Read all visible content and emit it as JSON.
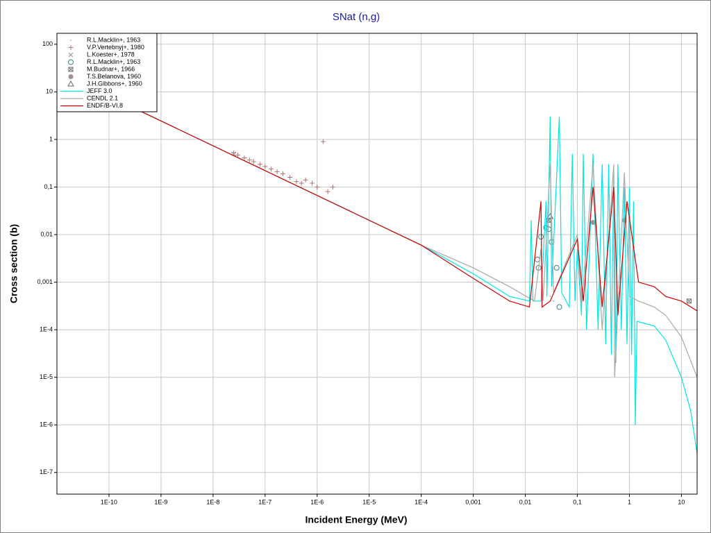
{
  "chart_data": {
    "type": "line",
    "title": "SNat (n,g)",
    "x_label": "Incident Energy (MeV)",
    "y_label": "Cross section (b)",
    "x_log": true,
    "y_log": true,
    "grid": true,
    "legend": "upper left",
    "xlim": [
      1e-11,
      20
    ],
    "ylim": [
      3.5e-08,
      170
    ],
    "xticks": [
      {
        "value": 1e-10,
        "label": "1E-10"
      },
      {
        "value": 1e-09,
        "label": "1E-9"
      },
      {
        "value": 1e-08,
        "label": "1E-8"
      },
      {
        "value": 1e-07,
        "label": "1E-7"
      },
      {
        "value": 1e-06,
        "label": "1E-6"
      },
      {
        "value": 1e-05,
        "label": "1E-5"
      },
      {
        "value": 0.0001,
        "label": "1E-4"
      },
      {
        "value": 0.001,
        "label": "0,001"
      },
      {
        "value": 0.01,
        "label": "0,01"
      },
      {
        "value": 0.1,
        "label": "0,1"
      },
      1,
      10
    ],
    "yticks": [
      100,
      10,
      1,
      {
        "value": 0.1,
        "label": "0,1"
      },
      {
        "value": 0.01,
        "label": "0,01"
      },
      {
        "value": 0.001,
        "label": "0,001"
      },
      {
        "value": 0.0001,
        "label": "1E-4"
      },
      {
        "value": 1e-05,
        "label": "1E-5"
      },
      {
        "value": 1e-06,
        "label": "1E-6"
      },
      {
        "value": 1e-07,
        "label": "1E-7"
      }
    ],
    "series": [
      {
        "name": "R.L.Macklin+, 1963",
        "mode": "markers",
        "marker": "dot",
        "color": "#b0b0c0",
        "x": [
          0.03,
          0.035
        ],
        "values": [
          0.0005,
          0.0004
        ]
      },
      {
        "name": "V.P.Vertebnyj+, 1980",
        "mode": "markers",
        "marker": "plus",
        "color": "#b07070",
        "x": [
          2.5e-08,
          3e-08,
          4e-08,
          5e-08,
          6e-08,
          8e-08,
          1e-07,
          1.3e-07,
          1.7e-07,
          2.2e-07,
          3e-07,
          4e-07,
          5e-07,
          6e-07,
          8e-07,
          1e-06,
          1.3e-06,
          1.6e-06,
          2e-06
        ],
        "values": [
          0.52,
          0.47,
          0.41,
          0.37,
          0.34,
          0.3,
          0.27,
          0.24,
          0.21,
          0.19,
          0.16,
          0.13,
          0.12,
          0.14,
          0.12,
          0.1,
          0.9,
          0.08,
          0.1
        ]
      },
      {
        "name": "L.Koester+, 1978",
        "mode": "markers",
        "marker": "x",
        "color": "#9090a0",
        "x": [
          2.5e-08
        ],
        "values": [
          0.5
        ]
      },
      {
        "name": "R.L.Macklin+, 1963",
        "mode": "markers",
        "marker": "circle",
        "color": "#408080",
        "x": [
          0.017,
          0.018,
          0.02,
          0.025,
          0.028,
          0.032,
          0.04,
          0.045
        ],
        "values": [
          0.003,
          0.002,
          0.009,
          0.014,
          0.013,
          0.007,
          0.002,
          0.0003
        ]
      },
      {
        "name": "M.Budnar+, 1966",
        "mode": "markers",
        "marker": "square-x",
        "color": "#707070",
        "x": [
          0.028,
          14
        ],
        "values": [
          0.02,
          0.0004
        ]
      },
      {
        "name": "T.S.Belanova, 1960",
        "mode": "markers",
        "marker": "filled-circle",
        "color": "#a09090",
        "x": [
          0.2,
          0.8
        ],
        "values": [
          0.018,
          0.02
        ]
      },
      {
        "name": "J.H.Gibbons+, 1960",
        "mode": "markers",
        "marker": "triangle",
        "color": "#606070",
        "x": [
          0.03
        ],
        "values": [
          0.024
        ]
      },
      {
        "name": "JEFF 3.0",
        "mode": "lines",
        "color": "#00e5e5",
        "x": [
          1e-11,
          0.0001,
          0.001,
          0.005,
          0.012,
          0.013,
          0.014,
          0.02,
          0.025,
          0.026,
          0.03,
          0.032,
          0.045,
          0.05,
          0.07,
          0.08,
          0.09,
          0.1,
          0.12,
          0.13,
          0.15,
          0.2,
          0.25,
          0.3,
          0.35,
          0.4,
          0.45,
          0.5,
          0.55,
          0.6,
          0.7,
          0.8,
          0.9,
          1,
          1.1,
          1.2,
          1.3,
          1.4,
          3,
          5,
          10,
          15,
          20
        ],
        "values": [
          27,
          0.006,
          0.0015,
          0.0005,
          0.0004,
          0.02,
          0.0004,
          0.0004,
          0.05,
          0.0005,
          3,
          0.0008,
          3,
          0.0006,
          0.0003,
          0.5,
          0.0004,
          0.005,
          0.0002,
          0.5,
          0.0001,
          0.5,
          0.0001,
          0.3,
          5e-05,
          0.3,
          3e-05,
          0.2,
          2e-05,
          0.3,
          0.0001,
          0.1,
          5e-05,
          0.1,
          3e-05,
          0.05,
          1e-06,
          0.00015,
          0.00012,
          6e-05,
          1e-05,
          2e-06,
          2.5e-07
        ]
      },
      {
        "name": "CENDL 2.1",
        "mode": "lines",
        "color": "#a8a8a8",
        "x": [
          1e-11,
          0.0001,
          0.001,
          0.005,
          0.015,
          0.02,
          0.022,
          0.03,
          0.035,
          0.1,
          0.12,
          0.2,
          0.3,
          0.5,
          0.52,
          0.8,
          1,
          1.5,
          3,
          5,
          10,
          20
        ],
        "values": [
          27,
          0.006,
          0.002,
          0.0008,
          0.0004,
          0.005,
          0.0004,
          0.3,
          0.0006,
          0.01,
          0.0003,
          0.3,
          0.0001,
          0.3,
          1e-05,
          0.2,
          0.0005,
          0.0004,
          0.0003,
          0.0002,
          7e-05,
          1e-05
        ]
      },
      {
        "name": "ENDF/B-VI.8",
        "mode": "lines",
        "color": "#cc0000",
        "x": [
          1e-11,
          0.0001,
          0.001,
          0.005,
          0.012,
          0.02,
          0.021,
          0.03,
          0.1,
          0.13,
          0.2,
          0.3,
          0.5,
          0.6,
          0.9,
          1.5,
          3,
          5,
          10,
          20
        ],
        "values": [
          27,
          0.006,
          0.0012,
          0.0004,
          0.0003,
          0.05,
          0.0003,
          0.0004,
          0.008,
          0.0004,
          0.1,
          0.0003,
          0.1,
          0.0002,
          0.05,
          0.001,
          0.0008,
          0.0005,
          0.0004,
          0.00025
        ]
      }
    ]
  }
}
